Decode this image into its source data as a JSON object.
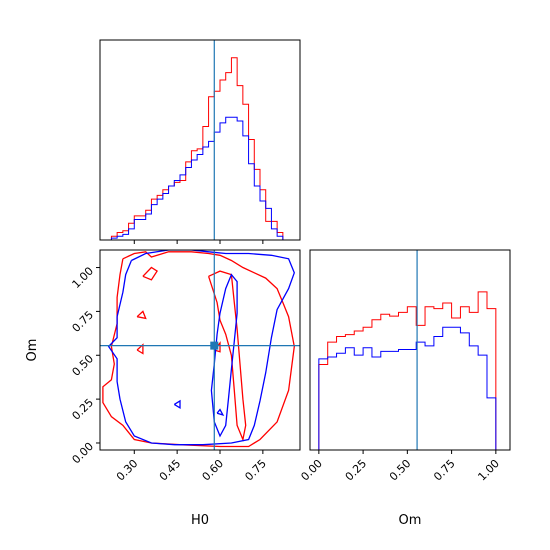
{
  "chart_data": {
    "type": "corner",
    "parameters": [
      "H0",
      "Om"
    ],
    "truth": {
      "H0": 0.58,
      "Om": 0.555
    },
    "series_colors": {
      "red": "#ff0000",
      "blue": "#0000ff",
      "truth": "#1f77b4"
    },
    "panels": {
      "h0_hist": {
        "type": "histogram",
        "xlim": [
          0.18,
          0.88
        ],
        "bin_edges": [
          0.22,
          0.24,
          0.26,
          0.28,
          0.3,
          0.32,
          0.34,
          0.36,
          0.38,
          0.4,
          0.42,
          0.44,
          0.46,
          0.48,
          0.5,
          0.52,
          0.54,
          0.56,
          0.58,
          0.6,
          0.62,
          0.64,
          0.66,
          0.68,
          0.7,
          0.72,
          0.74,
          0.76,
          0.78,
          0.8,
          0.82
        ],
        "red": [
          0.02,
          0.04,
          0.05,
          0.09,
          0.13,
          0.13,
          0.16,
          0.22,
          0.24,
          0.27,
          0.29,
          0.31,
          0.32,
          0.42,
          0.48,
          0.49,
          0.61,
          0.77,
          0.8,
          0.86,
          0.9,
          0.98,
          0.83,
          0.73,
          0.54,
          0.38,
          0.27,
          0.1,
          0.1,
          0.04
        ],
        "blue": [
          0.01,
          0.02,
          0.03,
          0.06,
          0.11,
          0.11,
          0.14,
          0.19,
          0.22,
          0.25,
          0.29,
          0.32,
          0.35,
          0.39,
          0.43,
          0.46,
          0.5,
          0.53,
          0.58,
          0.63,
          0.66,
          0.66,
          0.64,
          0.56,
          0.41,
          0.29,
          0.21,
          0.17,
          0.06,
          0.02
        ]
      },
      "om_hist": {
        "type": "histogram",
        "xlim": [
          -0.05,
          1.08
        ],
        "xticks": [
          "0.00",
          "0.25",
          "0.50",
          "0.75",
          "1.00"
        ],
        "xlabel": "Om",
        "bin_edges": [
          0.0,
          0.05,
          0.1,
          0.15,
          0.2,
          0.25,
          0.3,
          0.35,
          0.4,
          0.45,
          0.5,
          0.55,
          0.6,
          0.65,
          0.7,
          0.75,
          0.8,
          0.85,
          0.9,
          0.95,
          1.0
        ],
        "red": [
          0.46,
          0.58,
          0.61,
          0.62,
          0.64,
          0.66,
          0.7,
          0.73,
          0.72,
          0.74,
          0.77,
          0.67,
          0.77,
          0.76,
          0.79,
          0.71,
          0.77,
          0.74,
          0.85,
          0.76
        ],
        "blue": [
          0.49,
          0.5,
          0.52,
          0.55,
          0.51,
          0.55,
          0.5,
          0.53,
          0.53,
          0.54,
          0.54,
          0.58,
          0.56,
          0.61,
          0.66,
          0.66,
          0.63,
          0.56,
          0.51,
          0.28
        ]
      },
      "joint": {
        "type": "contour",
        "xlim": [
          0.18,
          0.88
        ],
        "ylim": [
          -0.04,
          1.1
        ],
        "xticks": [
          "0.30",
          "0.45",
          "0.60",
          "0.75"
        ],
        "yticks": [
          "0.00",
          "0.25",
          "0.50",
          "0.75",
          "1.00"
        ],
        "xlabel": "H0",
        "ylabel": "Om",
        "red_contours": [
          [
            [
              0.26,
              1.05
            ],
            [
              0.3,
              1.08
            ],
            [
              0.34,
              1.09
            ],
            [
              0.36,
              1.06
            ],
            [
              0.42,
              1.09
            ],
            [
              0.5,
              1.09
            ],
            [
              0.56,
              1.08
            ],
            [
              0.6,
              1.07
            ],
            [
              0.64,
              1.04
            ],
            [
              0.68,
              1.0
            ],
            [
              0.72,
              0.97
            ],
            [
              0.76,
              0.94
            ],
            [
              0.8,
              0.88
            ],
            [
              0.82,
              0.8
            ],
            [
              0.84,
              0.72
            ],
            [
              0.86,
              0.55
            ],
            [
              0.84,
              0.3
            ],
            [
              0.8,
              0.12
            ],
            [
              0.74,
              0.02
            ],
            [
              0.7,
              -0.02
            ],
            [
              0.6,
              -0.02
            ],
            [
              0.46,
              -0.01
            ],
            [
              0.36,
              0.0
            ],
            [
              0.3,
              0.02
            ],
            [
              0.26,
              0.1
            ],
            [
              0.22,
              0.15
            ],
            [
              0.19,
              0.23
            ],
            [
              0.19,
              0.32
            ],
            [
              0.22,
              0.36
            ],
            [
              0.23,
              0.45
            ],
            [
              0.22,
              0.55
            ],
            [
              0.24,
              0.68
            ],
            [
              0.24,
              0.83
            ],
            [
              0.25,
              0.96
            ],
            [
              0.26,
              1.05
            ]
          ],
          [
            [
              0.56,
              0.95
            ],
            [
              0.6,
              0.98
            ],
            [
              0.64,
              0.96
            ],
            [
              0.65,
              0.8
            ],
            [
              0.66,
              0.65
            ],
            [
              0.67,
              0.45
            ],
            [
              0.68,
              0.25
            ],
            [
              0.69,
              0.1
            ],
            [
              0.68,
              0.02
            ],
            [
              0.66,
              0.1
            ],
            [
              0.65,
              0.3
            ],
            [
              0.64,
              0.5
            ],
            [
              0.62,
              0.62
            ],
            [
              0.6,
              0.7
            ],
            [
              0.59,
              0.8
            ],
            [
              0.56,
              0.95
            ]
          ],
          [
            [
              0.33,
              0.95
            ],
            [
              0.36,
              1.0
            ],
            [
              0.38,
              0.98
            ],
            [
              0.36,
              0.93
            ],
            [
              0.33,
              0.95
            ]
          ],
          [
            [
              0.31,
              0.72
            ],
            [
              0.33,
              0.75
            ],
            [
              0.34,
              0.71
            ],
            [
              0.31,
              0.72
            ]
          ],
          [
            [
              0.31,
              0.53
            ],
            [
              0.33,
              0.56
            ],
            [
              0.33,
              0.51
            ],
            [
              0.31,
              0.53
            ]
          ],
          [
            [
              0.58,
              0.53
            ],
            [
              0.6,
              0.57
            ],
            [
              0.6,
              0.52
            ],
            [
              0.58,
              0.53
            ]
          ]
        ],
        "blue_contours": [
          [
            [
              0.29,
              1.04
            ],
            [
              0.34,
              1.08
            ],
            [
              0.42,
              1.1
            ],
            [
              0.5,
              1.1
            ],
            [
              0.56,
              1.09
            ],
            [
              0.62,
              1.08
            ],
            [
              0.7,
              1.08
            ],
            [
              0.78,
              1.07
            ],
            [
              0.84,
              1.05
            ],
            [
              0.86,
              0.97
            ],
            [
              0.84,
              0.88
            ],
            [
              0.8,
              0.76
            ],
            [
              0.78,
              0.6
            ],
            [
              0.76,
              0.4
            ],
            [
              0.74,
              0.24
            ],
            [
              0.72,
              0.1
            ],
            [
              0.7,
              0.02
            ],
            [
              0.64,
              0.0
            ],
            [
              0.54,
              -0.01
            ],
            [
              0.44,
              -0.01
            ],
            [
              0.36,
              0.0
            ],
            [
              0.3,
              0.04
            ],
            [
              0.27,
              0.12
            ],
            [
              0.25,
              0.25
            ],
            [
              0.24,
              0.35
            ],
            [
              0.24,
              0.48
            ],
            [
              0.21,
              0.55
            ],
            [
              0.24,
              0.6
            ],
            [
              0.24,
              0.72
            ],
            [
              0.26,
              0.86
            ],
            [
              0.27,
              0.96
            ],
            [
              0.29,
              1.04
            ]
          ],
          [
            [
              0.58,
              0.45
            ],
            [
              0.59,
              0.62
            ],
            [
              0.6,
              0.74
            ],
            [
              0.62,
              0.88
            ],
            [
              0.64,
              0.96
            ],
            [
              0.66,
              0.92
            ],
            [
              0.66,
              0.74
            ],
            [
              0.65,
              0.58
            ],
            [
              0.64,
              0.42
            ],
            [
              0.63,
              0.26
            ],
            [
              0.62,
              0.1
            ],
            [
              0.6,
              0.04
            ],
            [
              0.58,
              0.12
            ],
            [
              0.57,
              0.3
            ],
            [
              0.58,
              0.45
            ]
          ],
          [
            [
              0.44,
              0.22
            ],
            [
              0.46,
              0.24
            ],
            [
              0.46,
              0.2
            ],
            [
              0.44,
              0.22
            ]
          ],
          [
            [
              0.59,
              0.17
            ],
            [
              0.6,
              0.19
            ],
            [
              0.61,
              0.16
            ],
            [
              0.59,
              0.17
            ]
          ]
        ]
      }
    }
  }
}
